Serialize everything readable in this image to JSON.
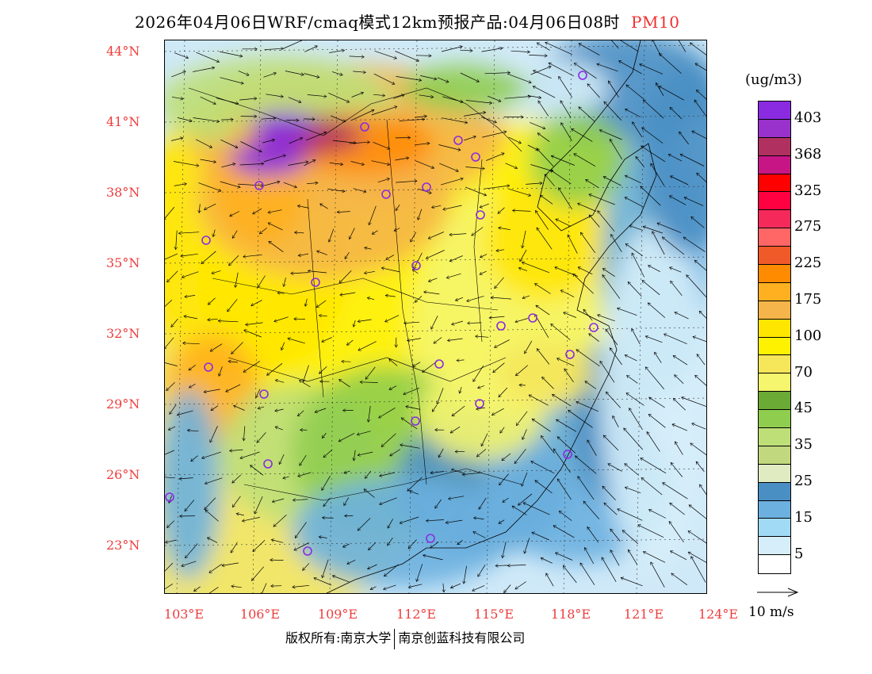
{
  "header": {
    "title": "2026年04月06日WRF/cmaq模式12km预报产品:04月06日08时",
    "pollutant": "PM10",
    "pollutant_color": "#f03030"
  },
  "legend": {
    "unit": "(ug/m3)",
    "colors": [
      "#8a2be2",
      "#9932cc",
      "#b03060",
      "#c71585",
      "#ff0000",
      "#ff0040",
      "#f52a5a",
      "#ff6666",
      "#f05a28",
      "#ff8c00",
      "#ffb020",
      "#f5b54a",
      "#ffe600",
      "#fff200",
      "#f5e65a",
      "#f5f56e",
      "#6aaa35",
      "#8fcd4f",
      "#bedf78",
      "#c2d87e",
      "#e0ebc2",
      "#4a8fc4",
      "#6cb0e0",
      "#a0daf5",
      "#d6eefa",
      "#ffffff"
    ],
    "labels": [
      "403",
      "368",
      "325",
      "275",
      "225",
      "175",
      "100",
      "70",
      "45",
      "35",
      "25",
      "15",
      "5"
    ],
    "wind_scale": "10 m/s"
  },
  "axes": {
    "lat_labels": [
      "44°N",
      "41°N",
      "38°N",
      "35°N",
      "32°N",
      "29°N",
      "26°N",
      "23°N"
    ],
    "lon_labels": [
      "103°E",
      "106°E",
      "109°E",
      "112°E",
      "115°E",
      "118°E",
      "121°E",
      "124°E"
    ]
  },
  "footer": {
    "copyright_left": "版权所有:南京大学",
    "copyright_right": "南京创蓝科技有限公司"
  }
}
